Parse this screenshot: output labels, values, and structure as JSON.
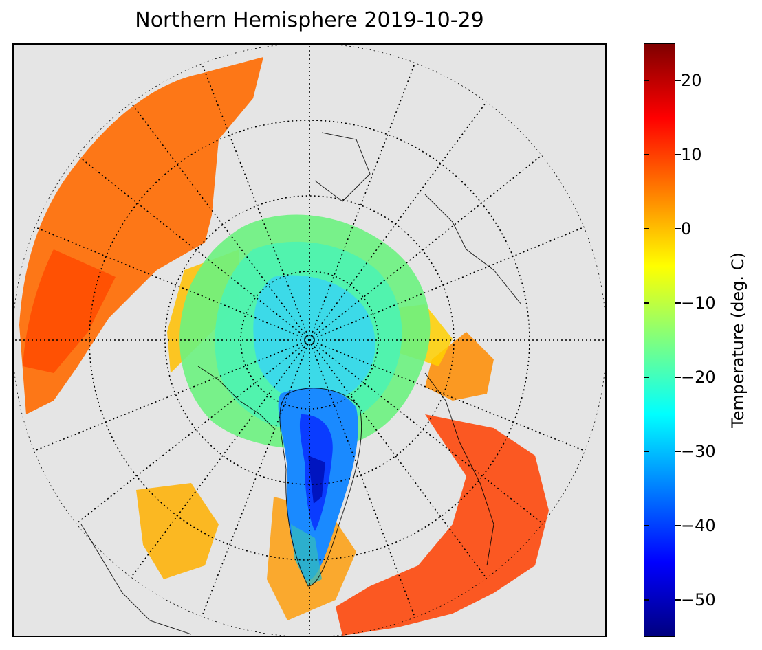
{
  "title": "Northern Hemisphere 2019-10-29",
  "colorbar": {
    "label": "Temperature (deg. C)",
    "min": -55,
    "max": 25,
    "ticks": [
      20,
      10,
      0,
      -10,
      -20,
      -30,
      -40,
      -50
    ],
    "tick_labels": [
      "20",
      "10",
      "0",
      "−10",
      "−20",
      "−30",
      "−40",
      "−50"
    ],
    "colormap": "jet"
  },
  "map": {
    "projection": "north-polar-stereographic",
    "background_color": "#e5e5e5",
    "graticule_style": "dotted"
  }
}
